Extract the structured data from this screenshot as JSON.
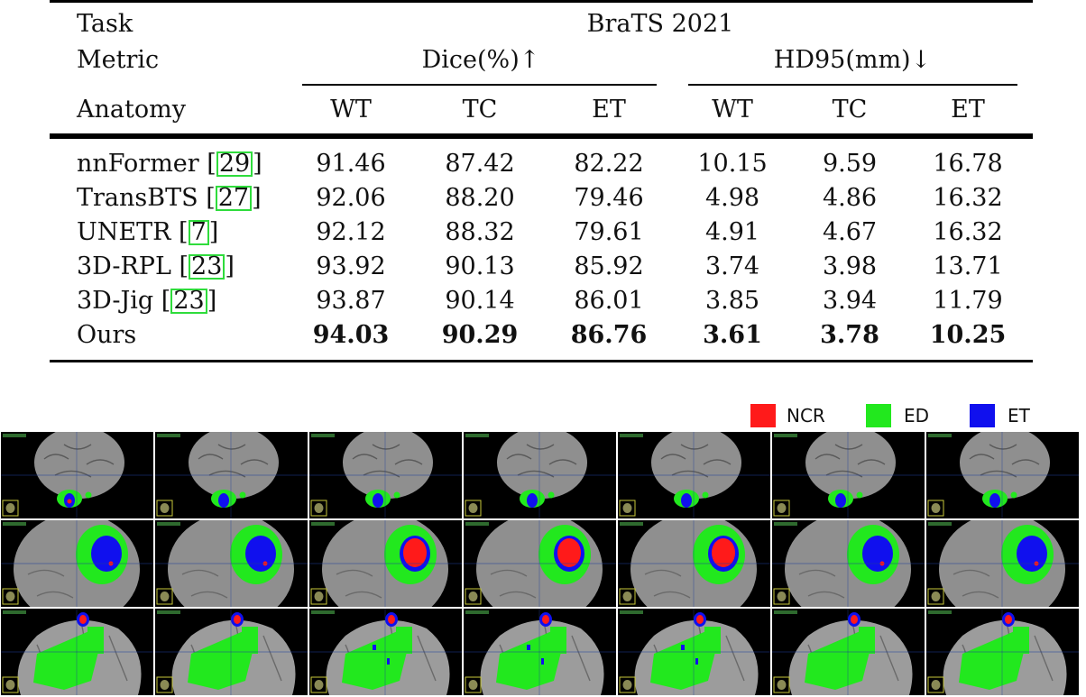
{
  "table": {
    "task_label": "Task",
    "task_value": "BraTS 2021",
    "metric_label": "Metric",
    "metric_dice": "Dice(%)↑",
    "metric_hd": "HD95(mm)↓",
    "anatomy_label": "Anatomy",
    "columns": [
      "WT",
      "TC",
      "ET",
      "WT",
      "TC",
      "ET"
    ],
    "rows": [
      {
        "method": "nnFormer",
        "cite": "29",
        "values": [
          "91.46",
          "87.42",
          "82.22",
          "10.15",
          "9.59",
          "16.78"
        ],
        "bold": false
      },
      {
        "method": "TransBTS",
        "cite": "27",
        "values": [
          "92.06",
          "88.20",
          "79.46",
          "4.98",
          "4.86",
          "16.32"
        ],
        "bold": false
      },
      {
        "method": "UNETR",
        "cite": "7",
        "values": [
          "92.12",
          "88.32",
          "79.61",
          "4.91",
          "4.67",
          "16.32"
        ],
        "bold": false
      },
      {
        "method": "3D-RPL",
        "cite": "23",
        "values": [
          "93.92",
          "90.13",
          "85.92",
          "3.74",
          "3.98",
          "13.71"
        ],
        "bold": false
      },
      {
        "method": "3D-Jig",
        "cite": "23",
        "values": [
          "93.87",
          "90.14",
          "86.01",
          "3.85",
          "3.94",
          "11.79"
        ],
        "bold": false
      },
      {
        "method": "Ours",
        "cite": "",
        "values": [
          "94.03",
          "90.29",
          "86.76",
          "3.61",
          "3.78",
          "10.25"
        ],
        "bold": true
      }
    ]
  },
  "legend": [
    {
      "label": "NCR",
      "color": "#ff1a1a"
    },
    {
      "label": "ED",
      "color": "#22e81e"
    },
    {
      "label": "ET",
      "color": "#1010ee"
    }
  ],
  "figure": {
    "colors": {
      "ncr": "#ff1a1a",
      "ed": "#22e81e",
      "et": "#1010ee",
      "brain": "#8f8f8f",
      "background": "#000000",
      "annotation": "#4db04d"
    },
    "columns": 7,
    "rows": [
      "axial-top",
      "axial-mid",
      "coronal"
    ]
  }
}
